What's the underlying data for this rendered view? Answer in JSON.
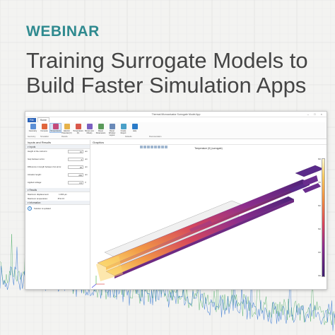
{
  "banner": {
    "eyebrow": "WEBINAR",
    "headline": "Training Surrogate Models to Build Faster Simulation Apps"
  },
  "colors": {
    "eyebrow": "#2f8a8f",
    "headline": "#444444",
    "file_tab": "#2c63b8",
    "signal": "#2a6fd0",
    "signal_alt": "#3aa655"
  },
  "app": {
    "title": "Thermal Microactuator Surrogate Model App",
    "menu": {
      "file": "File",
      "home": "Home"
    },
    "ribbon": {
      "buttons": [
        {
          "label": "Geometry",
          "icon": "geometry-icon"
        },
        {
          "label": "Compute",
          "icon": "compute-icon"
        },
        {
          "label": "Temperature",
          "icon": "temperature-icon",
          "active": true
        },
        {
          "label": "Electric Potential (V)",
          "icon": "electric-potential-icon"
        },
        {
          "label": "Temperature (K)",
          "icon": "temperature-k-icon"
        },
        {
          "label": "Stress (von Mises)",
          "icon": "stress-icon"
        },
        {
          "label": "Reset Parameters",
          "icon": "reset-icon"
        },
        {
          "label": "Reset Window Layout",
          "icon": "reset-layout-icon"
        },
        {
          "label": "Create Report",
          "icon": "report-icon"
        },
        {
          "label": "Help",
          "icon": "help-icon"
        }
      ],
      "groups": [
        "Geometry",
        "Simulation",
        "Results",
        "Defaults",
        "Documentation"
      ]
    },
    "left_pane": {
      "title": "Inputs and Results",
      "inputs_section": "Inputs",
      "params": [
        {
          "label": "Height of the cold arm:",
          "value": "15",
          "unit": "um"
        },
        {
          "label": "Gap between arms:",
          "value": "3",
          "unit": "um"
        },
        {
          "label": "Difference in length between hot arms:",
          "value": "25",
          "unit": "um"
        },
        {
          "label": "Actuator length:",
          "value": "240",
          "unit": "um"
        },
        {
          "label": "Applied voltage:",
          "value": "3.5",
          "unit": "V"
        }
      ],
      "results_section": "Results",
      "results": [
        {
          "label": "Maximum displacement:",
          "value": "1.693 µm"
        },
        {
          "label": "Maximum temperature:",
          "value": "872.2 K"
        }
      ],
      "information_section": "Information",
      "info_text": "Solution is updated"
    },
    "graphics": {
      "title": "Graphics",
      "plot_title": "Temperature (K) (surrogate)",
      "colorbar_ticks": [
        "800",
        "700",
        "600",
        "500",
        "400",
        "300"
      ]
    }
  }
}
